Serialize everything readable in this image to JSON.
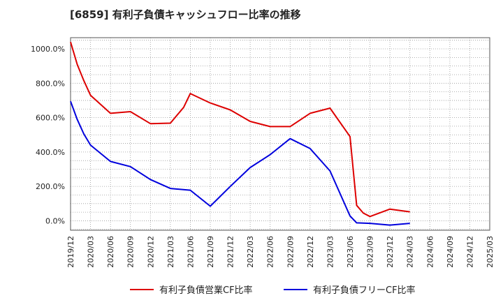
{
  "title": "[6859]  有利子負債キャッシュフロー比率の推移",
  "chart_data": {
    "type": "line",
    "yticks": [
      "0.0%",
      "200.0%",
      "400.0%",
      "600.0%",
      "800.0%",
      "1000.0%"
    ],
    "ytick_values": [
      0,
      200,
      400,
      600,
      800,
      1000
    ],
    "ylim": [
      -55,
      1065
    ],
    "xlim": [
      "2019-12",
      "2025-03"
    ],
    "xticks": [
      "2019/12",
      "2020/03",
      "2020/06",
      "2020/09",
      "2020/12",
      "2021/03",
      "2021/06",
      "2021/09",
      "2021/12",
      "2022/03",
      "2022/06",
      "2022/09",
      "2022/12",
      "2023/03",
      "2023/06",
      "2023/09",
      "2023/12",
      "2024/03",
      "2024/06",
      "2024/09",
      "2024/12",
      "2025/03"
    ],
    "grid": true,
    "legend_position": "bottom",
    "colors": {
      "series1": "#dd0000",
      "series2": "#0000dd",
      "grid": "#999999",
      "axis": "#555555"
    },
    "series": [
      {
        "name": "有利子負債営業CF比率",
        "color": "#dd0000",
        "points": [
          [
            "2019-12",
            1040
          ],
          [
            "2020-01",
            910
          ],
          [
            "2020-02",
            815
          ],
          [
            "2020-03",
            730
          ],
          [
            "2020-06",
            625
          ],
          [
            "2020-09",
            635
          ],
          [
            "2020-12",
            565
          ],
          [
            "2021-03",
            568
          ],
          [
            "2021-05",
            660
          ],
          [
            "2021-06",
            740
          ],
          [
            "2021-09",
            685
          ],
          [
            "2021-12",
            645
          ],
          [
            "2022-03",
            578
          ],
          [
            "2022-06",
            548
          ],
          [
            "2022-09",
            548
          ],
          [
            "2022-12",
            625
          ],
          [
            "2023-03",
            655
          ],
          [
            "2023-06",
            490
          ],
          [
            "2023-07",
            90
          ],
          [
            "2023-08",
            45
          ],
          [
            "2023-09",
            25
          ],
          [
            "2023-12",
            68
          ],
          [
            "2024-03",
            52
          ]
        ]
      },
      {
        "name": "有利子負債フリーCF比率",
        "color": "#0000dd",
        "points": [
          [
            "2019-12",
            695
          ],
          [
            "2020-01",
            590
          ],
          [
            "2020-02",
            505
          ],
          [
            "2020-03",
            440
          ],
          [
            "2020-06",
            345
          ],
          [
            "2020-09",
            315
          ],
          [
            "2020-12",
            240
          ],
          [
            "2021-03",
            188
          ],
          [
            "2021-06",
            178
          ],
          [
            "2021-09",
            85
          ],
          [
            "2021-12",
            200
          ],
          [
            "2022-03",
            310
          ],
          [
            "2022-06",
            385
          ],
          [
            "2022-09",
            478
          ],
          [
            "2022-12",
            420
          ],
          [
            "2023-03",
            290
          ],
          [
            "2023-06",
            28
          ],
          [
            "2023-07",
            -12
          ],
          [
            "2023-09",
            -15
          ],
          [
            "2023-12",
            -25
          ],
          [
            "2024-03",
            -15
          ]
        ]
      }
    ]
  }
}
